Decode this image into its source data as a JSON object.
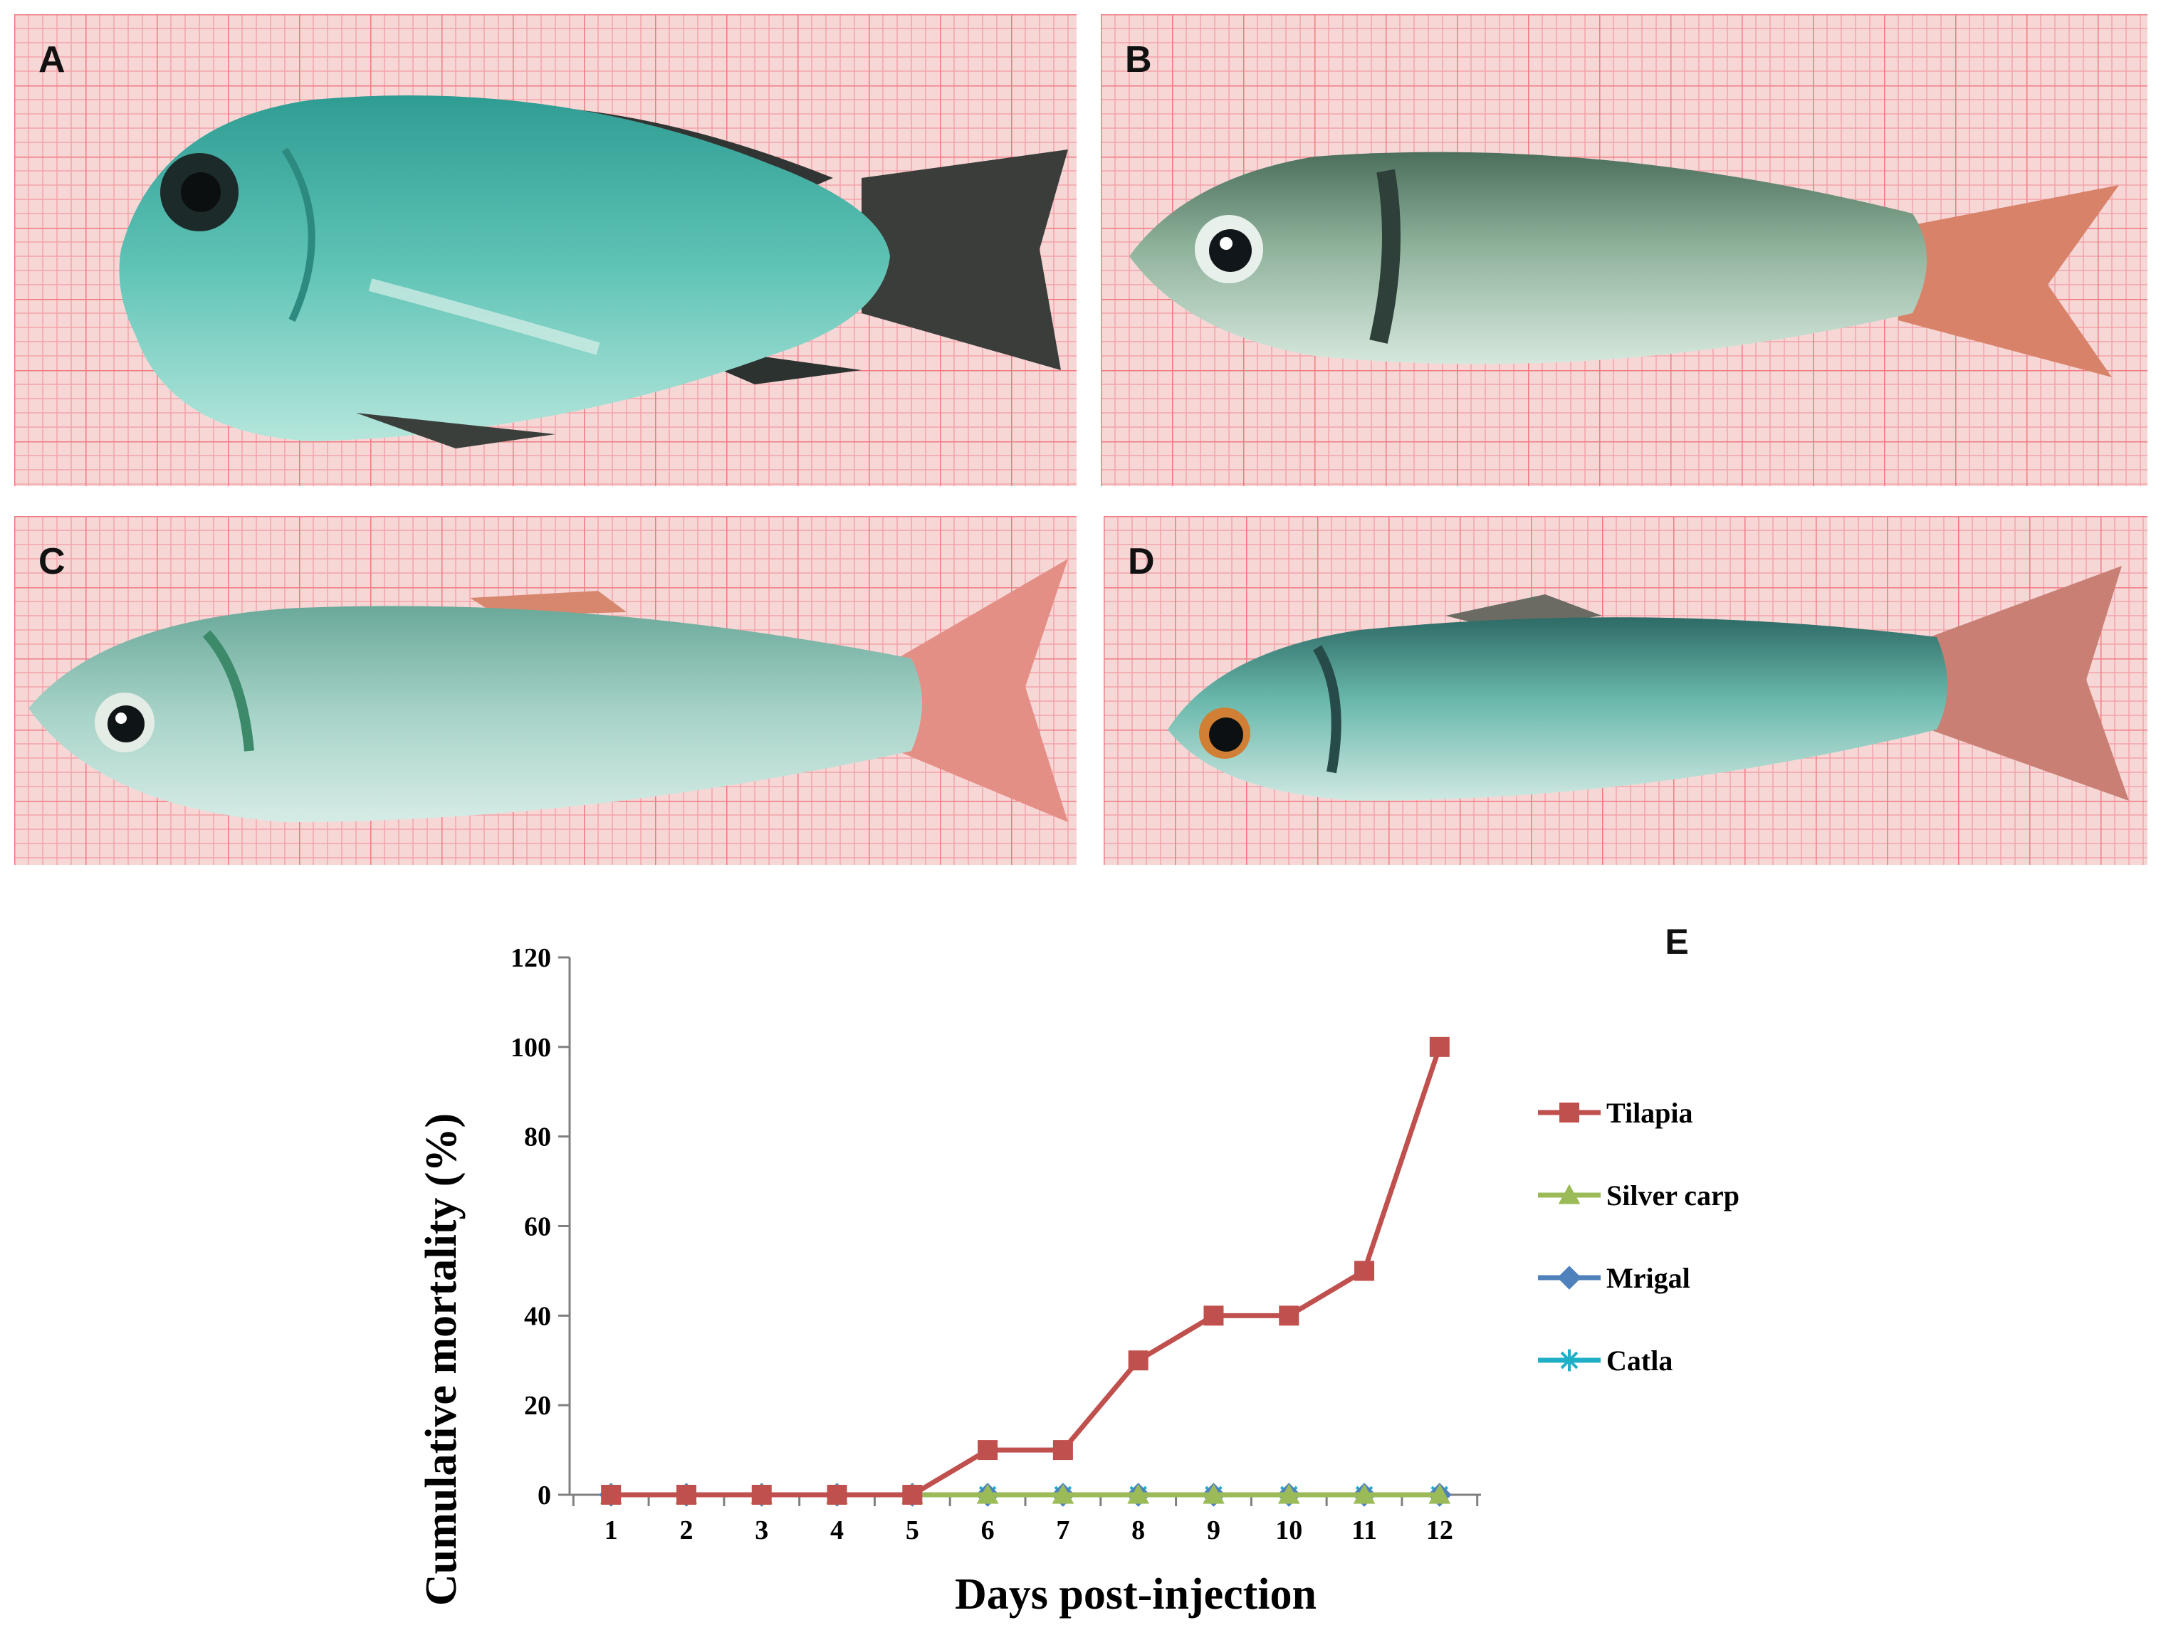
{
  "panels": {
    "a": {
      "label": "A"
    },
    "b": {
      "label": "B"
    },
    "c": {
      "label": "C"
    },
    "d": {
      "label": "D"
    },
    "e": {
      "label": "E"
    }
  },
  "colors": {
    "paper": "#f6d7d6",
    "grid": "#f07a82",
    "tilapia": "#c0504d",
    "silver_carp": "#9bbb59",
    "mrigal": "#4f81bd",
    "catla": "#1fb0c8"
  },
  "chart_data": {
    "type": "line",
    "title": "",
    "xlabel": "Days post-injection",
    "ylabel": "Cumulative mortality (%)",
    "x": [
      1,
      2,
      3,
      4,
      5,
      6,
      7,
      8,
      9,
      10,
      11,
      12
    ],
    "xticks": [
      "1",
      "2",
      "3",
      "4",
      "5",
      "6",
      "7",
      "8",
      "9",
      "10",
      "11",
      "12"
    ],
    "ylim": [
      0,
      120
    ],
    "yticks": [
      "0",
      "20",
      "40",
      "60",
      "80",
      "100",
      "120"
    ],
    "legend_position": "right",
    "series": [
      {
        "name": "Tilapia",
        "marker": "square",
        "values": [
          0,
          0,
          0,
          0,
          0,
          10,
          10,
          30,
          40,
          40,
          50,
          100
        ]
      },
      {
        "name": "Silver carp",
        "marker": "triangle",
        "values": [
          0,
          0,
          0,
          0,
          0,
          0,
          0,
          0,
          0,
          0,
          0,
          0
        ]
      },
      {
        "name": "Mrigal",
        "marker": "diamond",
        "values": [
          0,
          0,
          0,
          0,
          0,
          0,
          0,
          0,
          0,
          0,
          0,
          0
        ]
      },
      {
        "name": "Catla",
        "marker": "asterisk",
        "values": [
          0,
          0,
          0,
          0,
          0,
          0,
          0,
          0,
          0,
          0,
          0,
          0
        ]
      }
    ]
  }
}
